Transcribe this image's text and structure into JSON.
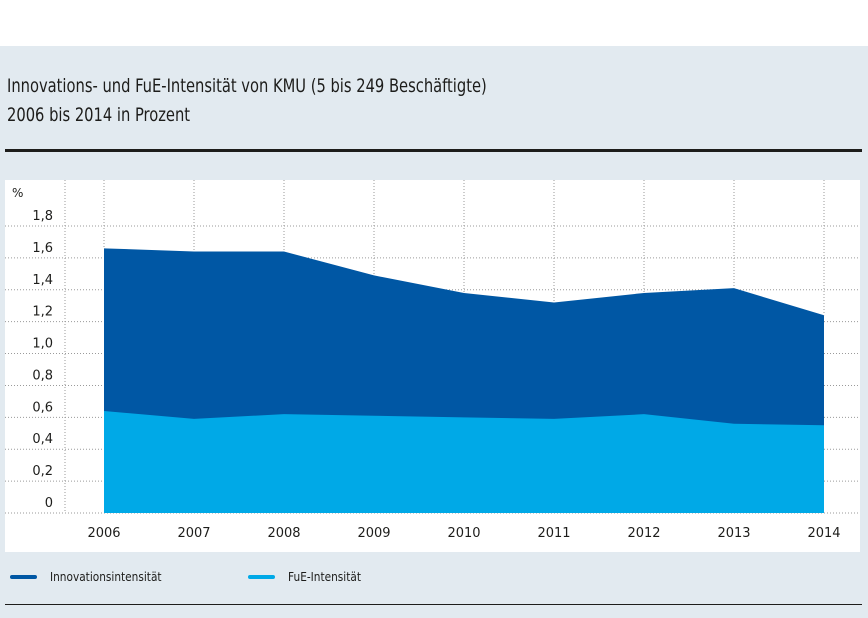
{
  "header": {
    "title_line1": "Innovations- und FuE-Intensität von KMU (5 bis 249 Beschäftigte)",
    "title_line2": "2006 bis 2014 in Prozent"
  },
  "colors": {
    "innovation": "#0057a4",
    "fue": "#00a9e7",
    "grid": "#9a9a9a",
    "text": "#1d1d1b"
  },
  "legend": [
    {
      "label": "Innovationsintensität",
      "color": "#0057a4"
    },
    {
      "label": "FuE-Intensität",
      "color": "#00a9e7"
    }
  ],
  "chart_data": {
    "type": "area",
    "title": "Innovations- und FuE-Intensität von KMU (5 bis 249 Beschäftigte) 2006 bis 2014 in Prozent",
    "xlabel": "",
    "ylabel": "%",
    "x": [
      "2006",
      "2007",
      "2008",
      "2009",
      "2010",
      "2011",
      "2012",
      "2013",
      "2014"
    ],
    "ylim": [
      0,
      1.8
    ],
    "yticks": [
      0,
      0.2,
      0.4,
      0.6,
      0.8,
      1.0,
      1.2,
      1.4,
      1.6,
      1.8
    ],
    "ytick_labels": [
      "0",
      "0,2",
      "0,4",
      "0,6",
      "0,8",
      "1,0",
      "1,2",
      "1,4",
      "1,6",
      "1,8"
    ],
    "grid": true,
    "legend_position": "bottom-left",
    "series": [
      {
        "name": "Innovationsintensität",
        "color": "#0057a4",
        "values": [
          1.66,
          1.64,
          1.64,
          1.49,
          1.38,
          1.32,
          1.38,
          1.41,
          1.24
        ]
      },
      {
        "name": "FuE-Intensität",
        "color": "#00a9e7",
        "values": [
          0.64,
          0.59,
          0.62,
          0.61,
          0.6,
          0.59,
          0.62,
          0.56,
          0.55
        ]
      }
    ]
  }
}
